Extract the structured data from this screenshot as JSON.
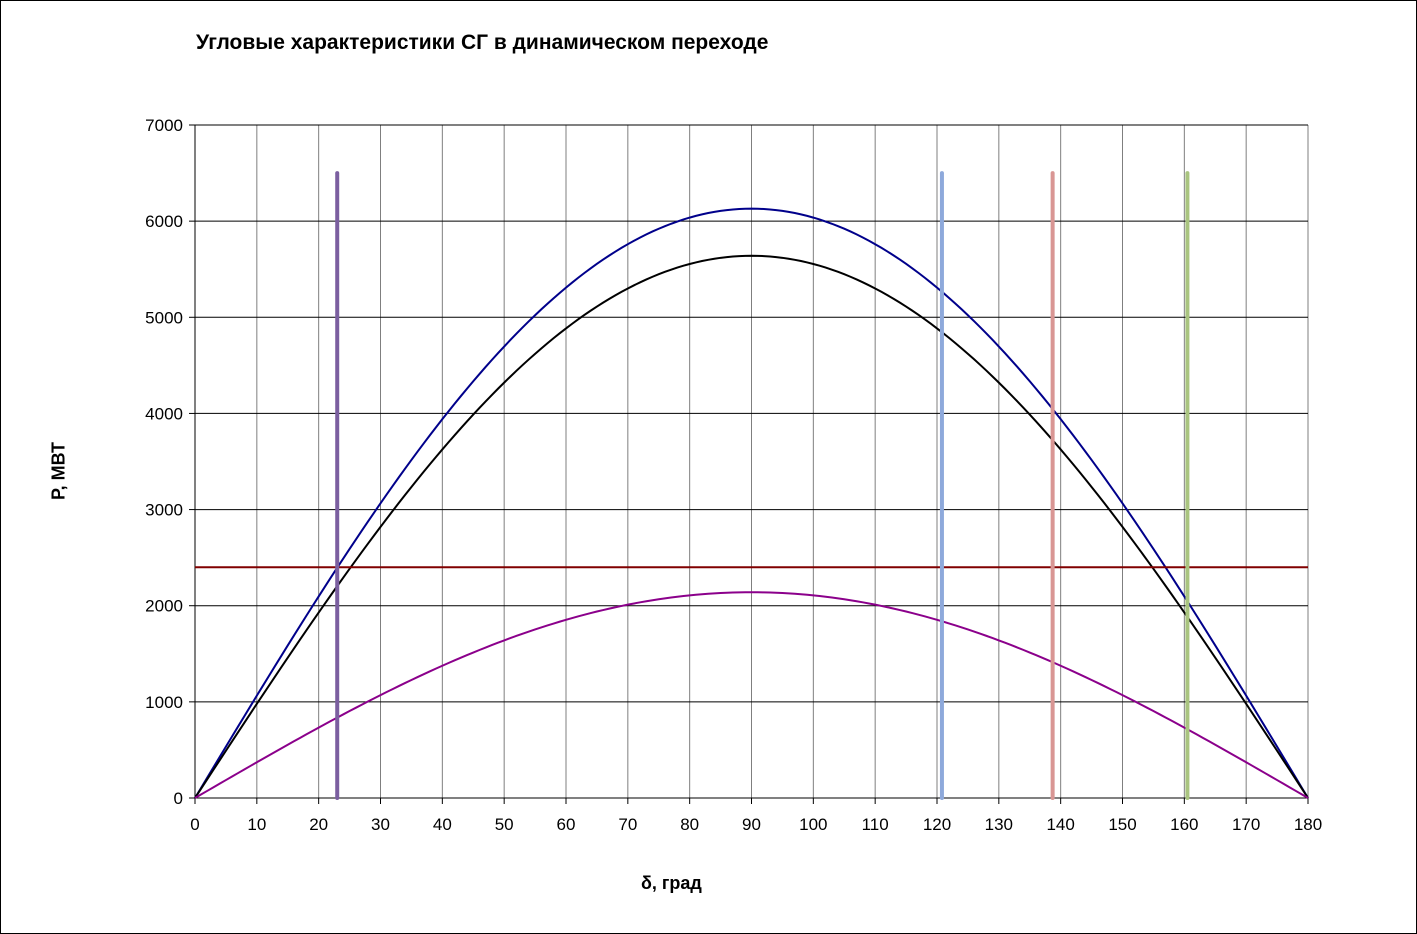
{
  "chart_data": {
    "type": "line",
    "title": "Угловые характеристики СГ в динамическом переходе",
    "xlabel": "δ, град",
    "ylabel": "P, МВТ",
    "xlim": [
      0,
      180
    ],
    "ylim": [
      0,
      7000
    ],
    "x_ticks": [
      0,
      10,
      20,
      30,
      40,
      50,
      60,
      70,
      80,
      90,
      100,
      110,
      120,
      130,
      140,
      150,
      160,
      170,
      180
    ],
    "y_ticks": [
      0,
      1000,
      2000,
      3000,
      4000,
      5000,
      6000,
      7000
    ],
    "grid": true,
    "legend": "none",
    "series": [
      {
        "kind": "sine",
        "amplitude": 6130,
        "color": "#00008B"
      },
      {
        "kind": "sine",
        "amplitude": 5640,
        "color": "#000000"
      },
      {
        "kind": "sine",
        "amplitude": 2140,
        "color": "#8B008B"
      },
      {
        "kind": "hline",
        "value": 2400,
        "color": "#800000"
      }
    ],
    "vertical_markers": [
      {
        "x": 23,
        "y_top": 6500,
        "color": "#7B5FA0"
      },
      {
        "x": 120.8,
        "y_top": 6500,
        "color": "#8EA9DB"
      },
      {
        "x": 138.7,
        "y_top": 6500,
        "color": "#D99694"
      },
      {
        "x": 160.5,
        "y_top": 6500,
        "color": "#A9C47F"
      }
    ]
  }
}
